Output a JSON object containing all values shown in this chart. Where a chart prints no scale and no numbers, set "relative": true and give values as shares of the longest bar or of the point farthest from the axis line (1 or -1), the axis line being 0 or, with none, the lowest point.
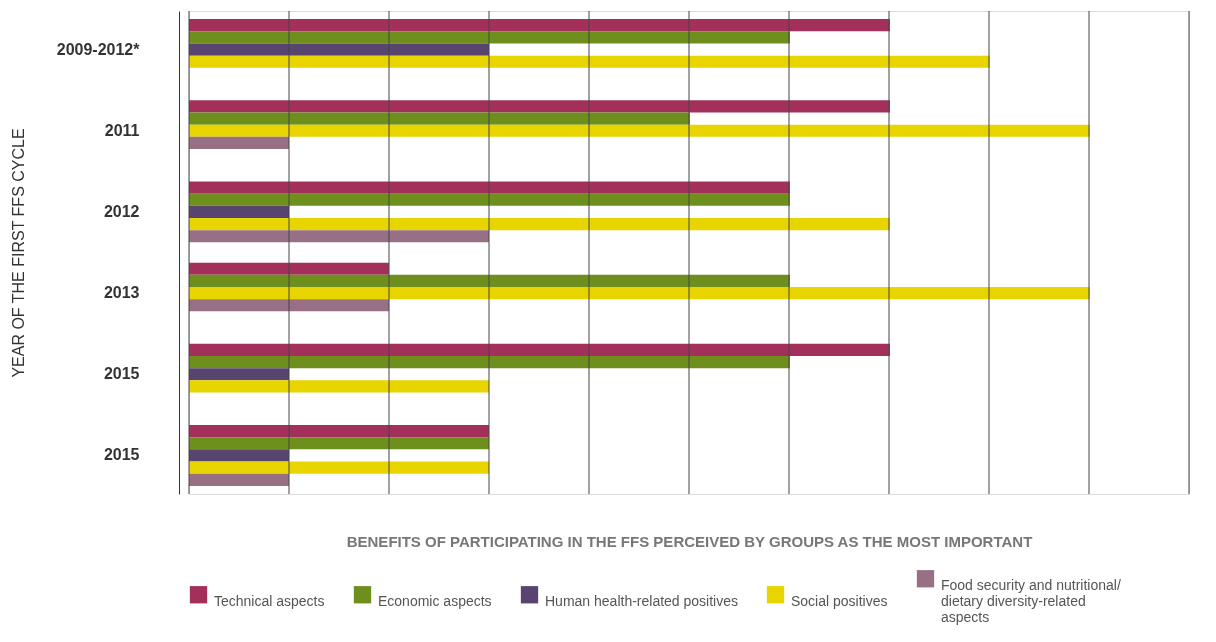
{
  "chart_data": {
    "type": "bar",
    "orientation": "horizontal",
    "relative": true,
    "xlabel": "BENEFITS OF PARTICIPATING IN THE FFS PERCEIVED BY GROUPS AS THE MOST IMPORTANT",
    "ylabel": "YEAR OF THE FIRST FFS CYCLE",
    "categories": [
      "2009-2012*",
      "2011",
      "2012",
      "2013",
      "2015",
      "2015"
    ],
    "series": [
      {
        "name": "Technical aspects",
        "color": "#a3305a",
        "values": [
          0.778,
          0.778,
          0.667,
          0.222,
          0.778,
          0.333
        ]
      },
      {
        "name": "Economic aspects",
        "color": "#6e8f1e",
        "values": [
          0.667,
          0.556,
          0.667,
          0.667,
          0.667,
          0.333
        ]
      },
      {
        "name": "Human health-related positives",
        "color": "#574570",
        "values": [
          0.333,
          null,
          0.111,
          null,
          0.111,
          0.111
        ]
      },
      {
        "name": "Social positives",
        "color": "#e8d500",
        "values": [
          0.889,
          1,
          0.778,
          1,
          0.333,
          0.333
        ]
      },
      {
        "name": "Food security and nutritional/ dietary diversity-related aspects",
        "color": "#977085",
        "values": [
          null,
          0.111,
          0.333,
          0.222,
          null,
          0.111
        ]
      }
    ],
    "grid": "x",
    "legend": "bottom"
  }
}
